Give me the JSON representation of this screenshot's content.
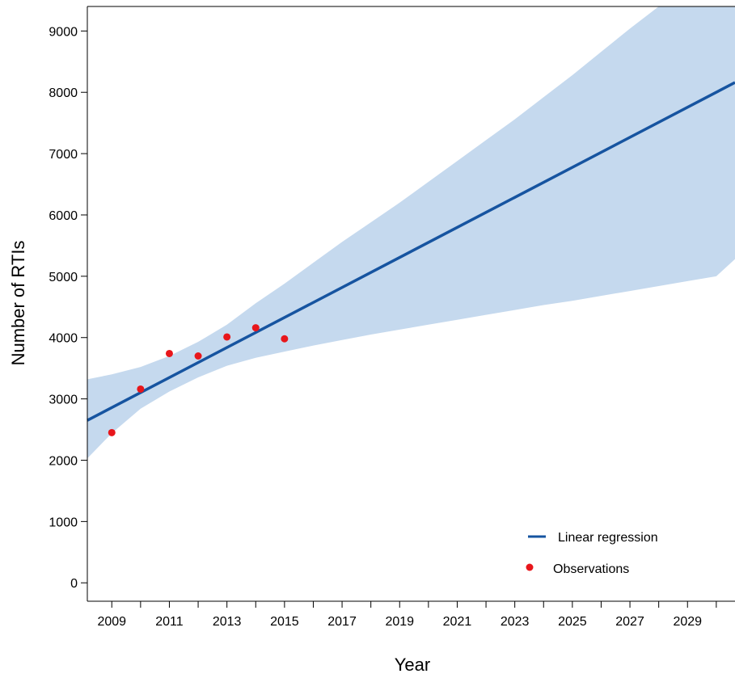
{
  "chart_data": {
    "type": "line",
    "xlabel": "Year",
    "ylabel": "Number of RTIs",
    "xlim": [
      2008.15,
      2030.65
    ],
    "ylim": [
      -300,
      9400
    ],
    "x_ticks": [
      2009,
      2010,
      2011,
      2012,
      2013,
      2014,
      2015,
      2016,
      2017,
      2018,
      2019,
      2020,
      2021,
      2022,
      2023,
      2024,
      2025,
      2026,
      2027,
      2028,
      2029,
      2030
    ],
    "x_tick_labels": [
      {
        "x": 2009,
        "label": "2009"
      },
      {
        "x": 2011,
        "label": "2011"
      },
      {
        "x": 2013,
        "label": "2013"
      },
      {
        "x": 2015,
        "label": "2015"
      },
      {
        "x": 2017,
        "label": "2017"
      },
      {
        "x": 2019,
        "label": "2019"
      },
      {
        "x": 2021,
        "label": "2021"
      },
      {
        "x": 2023,
        "label": "2023"
      },
      {
        "x": 2025,
        "label": "2025"
      },
      {
        "x": 2027,
        "label": "2027"
      },
      {
        "x": 2029,
        "label": "2029"
      }
    ],
    "y_ticks": [
      {
        "y": 0,
        "label": "0"
      },
      {
        "y": 1000,
        "label": "1000"
      },
      {
        "y": 2000,
        "label": "2000"
      },
      {
        "y": 3000,
        "label": "3000"
      },
      {
        "y": 4000,
        "label": "4000"
      },
      {
        "y": 5000,
        "label": "5000"
      },
      {
        "y": 6000,
        "label": "6000"
      },
      {
        "y": 7000,
        "label": "7000"
      },
      {
        "y": 8000,
        "label": "8000"
      },
      {
        "y": 9000,
        "label": "9000"
      }
    ],
    "series": [
      {
        "name": "Observations",
        "kind": "scatter",
        "color": "#e8161b",
        "points": [
          {
            "x": 2009,
            "y": 2450
          },
          {
            "x": 2010,
            "y": 3160
          },
          {
            "x": 2011,
            "y": 3740
          },
          {
            "x": 2012,
            "y": 3700
          },
          {
            "x": 2013,
            "y": 4010
          },
          {
            "x": 2014,
            "y": 4160
          },
          {
            "x": 2015,
            "y": 3980
          }
        ]
      },
      {
        "name": "Linear regression",
        "kind": "line",
        "color": "#1654a0",
        "points": [
          {
            "x": 2008.15,
            "y": 2650
          },
          {
            "x": 2030.65,
            "y": 8160
          }
        ]
      }
    ],
    "confidence_band": {
      "color": "#c5d9ee",
      "points": [
        {
          "x": 2008.15,
          "lower": 2030,
          "upper": 3320
        },
        {
          "x": 2009,
          "lower": 2440,
          "upper": 3400
        },
        {
          "x": 2010,
          "lower": 2840,
          "upper": 3520
        },
        {
          "x": 2011,
          "lower": 3120,
          "upper": 3700
        },
        {
          "x": 2012,
          "lower": 3350,
          "upper": 3930
        },
        {
          "x": 2013,
          "lower": 3540,
          "upper": 4210
        },
        {
          "x": 2014,
          "lower": 3670,
          "upper": 4560
        },
        {
          "x": 2015,
          "lower": 3770,
          "upper": 4880
        },
        {
          "x": 2016,
          "lower": 3870,
          "upper": 5220
        },
        {
          "x": 2017,
          "lower": 3960,
          "upper": 5560
        },
        {
          "x": 2018,
          "lower": 4050,
          "upper": 5880
        },
        {
          "x": 2019,
          "lower": 4130,
          "upper": 6200
        },
        {
          "x": 2020,
          "lower": 4210,
          "upper": 6540
        },
        {
          "x": 2021,
          "lower": 4290,
          "upper": 6880
        },
        {
          "x": 2022,
          "lower": 4370,
          "upper": 7220
        },
        {
          "x": 2023,
          "lower": 4450,
          "upper": 7560
        },
        {
          "x": 2024,
          "lower": 4530,
          "upper": 7920
        },
        {
          "x": 2025,
          "lower": 4600,
          "upper": 8280
        },
        {
          "x": 2026,
          "lower": 4680,
          "upper": 8660
        },
        {
          "x": 2027,
          "lower": 4760,
          "upper": 9040
        },
        {
          "x": 2028,
          "lower": 4840,
          "upper": 9400
        },
        {
          "x": 2029,
          "lower": 4920,
          "upper": 9400
        },
        {
          "x": 2030,
          "lower": 5000,
          "upper": 9400
        },
        {
          "x": 2030.65,
          "lower": 5280,
          "upper": 9400
        }
      ]
    },
    "legend": {
      "placement": "bottom-right",
      "items": [
        {
          "label": "Linear regression",
          "kind": "line",
          "color": "#1654a0"
        },
        {
          "label": "Observations",
          "kind": "point",
          "color": "#e8161b"
        }
      ]
    },
    "grid": false
  }
}
